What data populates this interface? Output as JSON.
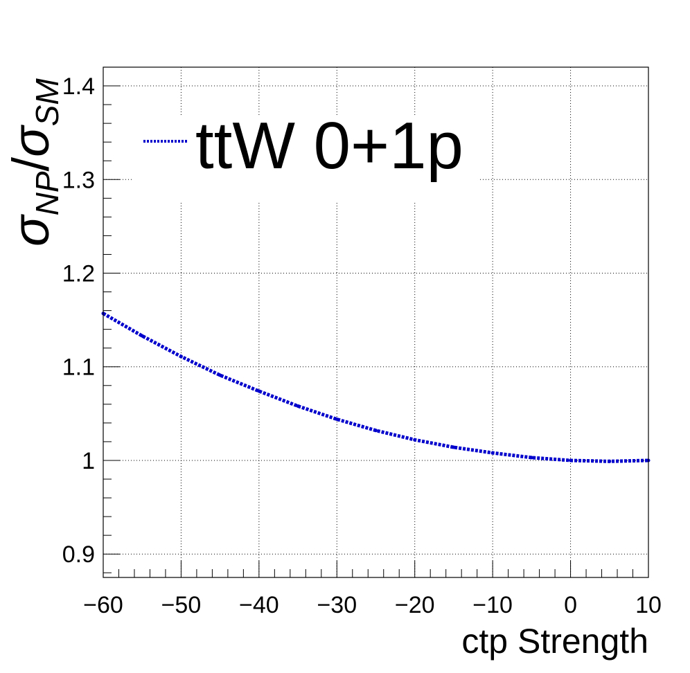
{
  "chart_data": {
    "type": "line",
    "xlabel": "ctp Strength",
    "ylabel": {
      "main": "σ",
      "num_sub": "NP",
      "slash": "/",
      "den": "σ",
      "den_sub": "SM"
    },
    "xlim": [
      -60,
      10
    ],
    "ylim": [
      0.875,
      1.42
    ],
    "x_ticks": [
      -60,
      -50,
      -40,
      -30,
      -20,
      -10,
      0,
      10
    ],
    "x_tick_labels": [
      "−60",
      "−50",
      "−40",
      "−30",
      "−20",
      "−10",
      "0",
      "10"
    ],
    "y_ticks": [
      0.9,
      1.0,
      1.1,
      1.2,
      1.3,
      1.4
    ],
    "y_tick_labels": [
      "0.9",
      "1",
      "1.1",
      "1.2",
      "1.3",
      "1.4"
    ],
    "grid": true,
    "legend_position": "top-left",
    "series": [
      {
        "name": "ttW 0+1p",
        "color": "#0000cc",
        "x": [
          -60,
          -55,
          -50,
          -45,
          -40,
          -35,
          -30,
          -25,
          -20,
          -15,
          -10,
          -5,
          0,
          5,
          10
        ],
        "y": [
          1.157,
          1.133,
          1.111,
          1.091,
          1.074,
          1.058,
          1.044,
          1.032,
          1.022,
          1.014,
          1.008,
          1.003,
          1.0,
          0.999,
          1.0
        ]
      }
    ]
  }
}
